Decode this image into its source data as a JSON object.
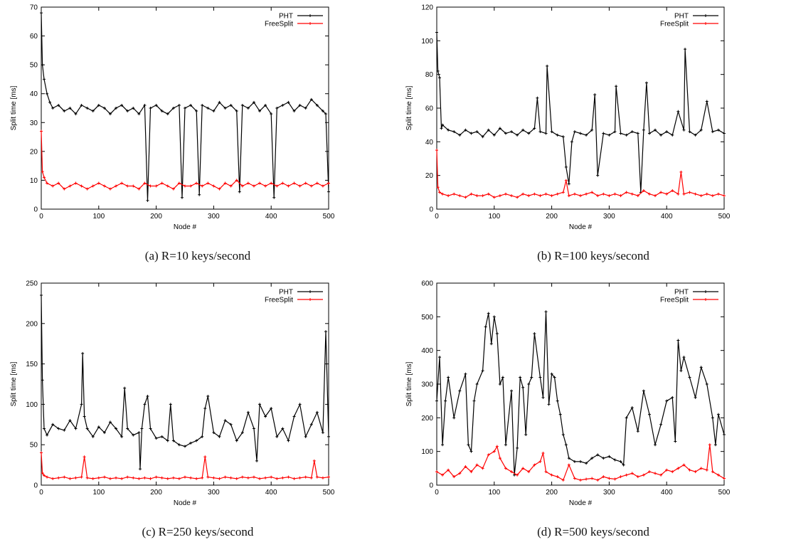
{
  "figure": {
    "captions": [
      "(a) R=10 keys/second",
      "(b) R=100 keys/second",
      "(c) R=250 keys/second",
      "(d) R=500 keys/second"
    ]
  },
  "chart_data": [
    {
      "type": "line",
      "title": "",
      "xlabel": "Node #",
      "ylabel": "Split time [ms]",
      "xlim": [
        0,
        500
      ],
      "ylim": [
        0,
        70
      ],
      "xticks": [
        0,
        100,
        200,
        300,
        400,
        500
      ],
      "yticks": [
        0,
        10,
        20,
        30,
        40,
        50,
        60,
        70
      ],
      "legend": "top-right",
      "grid": false,
      "series": [
        {
          "name": "PHT",
          "color": "#000000",
          "x": [
            0,
            2,
            5,
            10,
            15,
            20,
            30,
            40,
            50,
            60,
            70,
            80,
            90,
            100,
            110,
            120,
            130,
            140,
            150,
            160,
            170,
            180,
            185,
            190,
            200,
            210,
            220,
            230,
            240,
            245,
            250,
            260,
            270,
            275,
            280,
            290,
            300,
            310,
            320,
            330,
            340,
            345,
            350,
            360,
            370,
            380,
            390,
            400,
            405,
            410,
            420,
            430,
            440,
            450,
            460,
            470,
            480,
            490,
            495,
            500
          ],
          "y": [
            68,
            50,
            45,
            40,
            37,
            35,
            36,
            34,
            35,
            33,
            36,
            35,
            34,
            36,
            35,
            33,
            35,
            36,
            34,
            35,
            33,
            36,
            3,
            35,
            36,
            34,
            33,
            35,
            36,
            4,
            35,
            36,
            34,
            5,
            36,
            35,
            34,
            37,
            35,
            36,
            34,
            6,
            36,
            35,
            37,
            34,
            36,
            33,
            4,
            35,
            36,
            37,
            34,
            36,
            35,
            38,
            36,
            34,
            33,
            6
          ]
        },
        {
          "name": "FreeSplit",
          "color": "#ff0000",
          "x": [
            0,
            2,
            5,
            10,
            20,
            30,
            40,
            50,
            60,
            70,
            80,
            90,
            100,
            110,
            120,
            130,
            140,
            150,
            160,
            170,
            180,
            190,
            200,
            210,
            220,
            230,
            240,
            250,
            260,
            270,
            280,
            290,
            300,
            310,
            320,
            330,
            340,
            350,
            360,
            370,
            380,
            390,
            400,
            410,
            420,
            430,
            440,
            450,
            460,
            470,
            480,
            490,
            500
          ],
          "y": [
            27,
            13,
            11,
            9,
            8,
            9,
            7,
            8,
            9,
            8,
            7,
            8,
            9,
            8,
            7,
            8,
            9,
            8,
            8,
            7,
            9,
            8,
            8,
            9,
            8,
            7,
            9,
            8,
            8,
            9,
            8,
            9,
            8,
            7,
            9,
            8,
            10,
            8,
            9,
            8,
            9,
            8,
            9,
            8,
            9,
            8,
            9,
            8,
            9,
            8,
            9,
            8,
            9
          ]
        }
      ]
    },
    {
      "type": "line",
      "title": "",
      "xlabel": "Node #",
      "ylabel": "Split time [ms]",
      "xlim": [
        0,
        500
      ],
      "ylim": [
        0,
        120
      ],
      "xticks": [
        0,
        100,
        200,
        300,
        400,
        500
      ],
      "yticks": [
        0,
        20,
        40,
        60,
        80,
        100,
        120
      ],
      "legend": "top-right",
      "grid": false,
      "series": [
        {
          "name": "PHT",
          "color": "#000000",
          "x": [
            0,
            2,
            5,
            8,
            10,
            20,
            30,
            40,
            50,
            60,
            70,
            80,
            90,
            100,
            110,
            120,
            130,
            140,
            150,
            160,
            170,
            175,
            180,
            190,
            192,
            200,
            210,
            220,
            225,
            230,
            235,
            240,
            250,
            260,
            270,
            275,
            280,
            290,
            300,
            310,
            312,
            320,
            330,
            340,
            350,
            355,
            360,
            365,
            370,
            380,
            390,
            400,
            410,
            420,
            430,
            432,
            440,
            450,
            460,
            470,
            480,
            490,
            500
          ],
          "y": [
            105,
            82,
            78,
            48,
            50,
            47,
            46,
            44,
            47,
            45,
            46,
            43,
            47,
            44,
            48,
            45,
            46,
            44,
            47,
            45,
            48,
            66,
            46,
            45,
            85,
            46,
            44,
            43,
            25,
            15,
            40,
            46,
            45,
            44,
            47,
            68,
            20,
            45,
            44,
            46,
            73,
            45,
            44,
            46,
            45,
            10,
            47,
            75,
            45,
            47,
            44,
            46,
            44,
            58,
            47,
            95,
            46,
            44,
            47,
            64,
            46,
            47,
            45
          ]
        },
        {
          "name": "FreeSplit",
          "color": "#ff0000",
          "x": [
            0,
            2,
            5,
            10,
            20,
            30,
            40,
            50,
            60,
            70,
            80,
            90,
            100,
            110,
            120,
            130,
            140,
            150,
            160,
            170,
            180,
            190,
            200,
            210,
            220,
            225,
            230,
            240,
            250,
            260,
            270,
            280,
            290,
            300,
            310,
            320,
            330,
            340,
            350,
            360,
            370,
            380,
            390,
            400,
            410,
            420,
            425,
            430,
            440,
            450,
            460,
            470,
            480,
            490,
            500
          ],
          "y": [
            35,
            13,
            10,
            9,
            8,
            9,
            8,
            7,
            9,
            8,
            8,
            9,
            7,
            8,
            9,
            8,
            7,
            9,
            8,
            9,
            8,
            9,
            8,
            9,
            10,
            17,
            8,
            9,
            8,
            9,
            10,
            8,
            9,
            8,
            9,
            8,
            10,
            9,
            8,
            11,
            9,
            8,
            10,
            9,
            11,
            9,
            22,
            9,
            10,
            9,
            8,
            9,
            8,
            9,
            8
          ]
        }
      ]
    },
    {
      "type": "line",
      "title": "",
      "xlabel": "Node #",
      "ylabel": "Split time [ms]",
      "xlim": [
        0,
        500
      ],
      "ylim": [
        0,
        250
      ],
      "xticks": [
        0,
        100,
        200,
        300,
        400,
        500
      ],
      "yticks": [
        0,
        50,
        100,
        150,
        200,
        250
      ],
      "legend": "top-right",
      "grid": false,
      "series": [
        {
          "name": "PHT",
          "color": "#000000",
          "x": [
            0,
            2,
            5,
            10,
            20,
            30,
            40,
            50,
            60,
            70,
            72,
            75,
            80,
            90,
            100,
            110,
            120,
            130,
            140,
            145,
            150,
            160,
            170,
            172,
            175,
            180,
            185,
            190,
            200,
            210,
            220,
            225,
            230,
            240,
            250,
            260,
            270,
            280,
            285,
            290,
            300,
            310,
            320,
            330,
            340,
            350,
            360,
            370,
            375,
            380,
            390,
            400,
            410,
            420,
            430,
            440,
            450,
            460,
            470,
            480,
            490,
            495,
            500
          ],
          "y": [
            235,
            130,
            70,
            62,
            75,
            70,
            68,
            80,
            70,
            100,
            163,
            85,
            70,
            60,
            72,
            65,
            78,
            70,
            60,
            120,
            70,
            62,
            65,
            20,
            70,
            100,
            110,
            70,
            58,
            60,
            55,
            100,
            55,
            50,
            48,
            52,
            55,
            60,
            95,
            110,
            65,
            60,
            80,
            75,
            55,
            65,
            90,
            70,
            30,
            100,
            85,
            95,
            60,
            70,
            55,
            85,
            100,
            60,
            75,
            90,
            65,
            190,
            60
          ]
        },
        {
          "name": "FreeSplit",
          "color": "#ff0000",
          "x": [
            0,
            2,
            5,
            10,
            20,
            30,
            40,
            50,
            60,
            70,
            75,
            80,
            90,
            100,
            110,
            120,
            130,
            140,
            150,
            160,
            170,
            180,
            190,
            200,
            210,
            220,
            230,
            240,
            250,
            260,
            270,
            280,
            285,
            290,
            300,
            310,
            320,
            330,
            340,
            350,
            360,
            370,
            380,
            390,
            400,
            410,
            420,
            430,
            440,
            450,
            460,
            470,
            475,
            480,
            490,
            500
          ],
          "y": [
            40,
            15,
            12,
            10,
            8,
            9,
            10,
            8,
            9,
            10,
            35,
            9,
            8,
            9,
            10,
            8,
            9,
            8,
            10,
            9,
            8,
            9,
            8,
            10,
            9,
            8,
            9,
            8,
            10,
            9,
            8,
            9,
            35,
            10,
            9,
            8,
            10,
            9,
            8,
            10,
            9,
            10,
            8,
            9,
            10,
            8,
            9,
            10,
            8,
            9,
            10,
            9,
            30,
            10,
            9,
            10
          ]
        }
      ]
    },
    {
      "type": "line",
      "title": "",
      "xlabel": "Node #",
      "ylabel": "Split time [ms]",
      "xlim": [
        0,
        500
      ],
      "ylim": [
        0,
        600
      ],
      "xticks": [
        0,
        100,
        200,
        300,
        400,
        500
      ],
      "yticks": [
        0,
        100,
        200,
        300,
        400,
        500,
        600
      ],
      "legend": "top-right",
      "grid": false,
      "series": [
        {
          "name": "PHT",
          "color": "#000000",
          "x": [
            0,
            5,
            10,
            15,
            20,
            30,
            40,
            50,
            55,
            60,
            65,
            70,
            80,
            85,
            90,
            95,
            100,
            105,
            110,
            115,
            120,
            130,
            135,
            140,
            145,
            150,
            155,
            160,
            165,
            170,
            180,
            185,
            190,
            195,
            200,
            205,
            210,
            215,
            220,
            225,
            230,
            240,
            250,
            260,
            270,
            280,
            290,
            300,
            310,
            320,
            325,
            330,
            340,
            350,
            360,
            370,
            380,
            390,
            400,
            410,
            415,
            420,
            425,
            430,
            440,
            450,
            460,
            470,
            480,
            485,
            490,
            500
          ],
          "y": [
            250,
            380,
            120,
            250,
            320,
            200,
            280,
            330,
            120,
            100,
            250,
            300,
            340,
            470,
            510,
            420,
            500,
            450,
            300,
            320,
            120,
            280,
            30,
            110,
            320,
            290,
            150,
            300,
            320,
            450,
            320,
            260,
            515,
            240,
            330,
            320,
            250,
            210,
            150,
            120,
            80,
            70,
            70,
            65,
            80,
            90,
            80,
            85,
            75,
            70,
            60,
            200,
            230,
            160,
            280,
            210,
            120,
            180,
            250,
            260,
            130,
            430,
            340,
            380,
            320,
            260,
            350,
            300,
            200,
            120,
            210,
            150
          ]
        },
        {
          "name": "FreeSplit",
          "color": "#ff0000",
          "x": [
            0,
            10,
            20,
            30,
            40,
            50,
            60,
            70,
            80,
            90,
            100,
            105,
            110,
            120,
            130,
            140,
            150,
            160,
            170,
            180,
            185,
            190,
            200,
            210,
            220,
            230,
            240,
            250,
            260,
            270,
            280,
            290,
            300,
            310,
            320,
            330,
            340,
            350,
            360,
            370,
            380,
            390,
            400,
            410,
            420,
            430,
            440,
            450,
            460,
            470,
            475,
            480,
            490,
            500
          ],
          "y": [
            40,
            30,
            45,
            25,
            35,
            55,
            40,
            60,
            50,
            90,
            100,
            115,
            80,
            50,
            40,
            30,
            50,
            40,
            60,
            70,
            95,
            40,
            30,
            25,
            15,
            60,
            20,
            15,
            18,
            20,
            15,
            25,
            20,
            18,
            25,
            30,
            35,
            25,
            30,
            40,
            35,
            30,
            45,
            40,
            50,
            60,
            45,
            40,
            50,
            45,
            120,
            40,
            30,
            20
          ]
        }
      ]
    }
  ]
}
